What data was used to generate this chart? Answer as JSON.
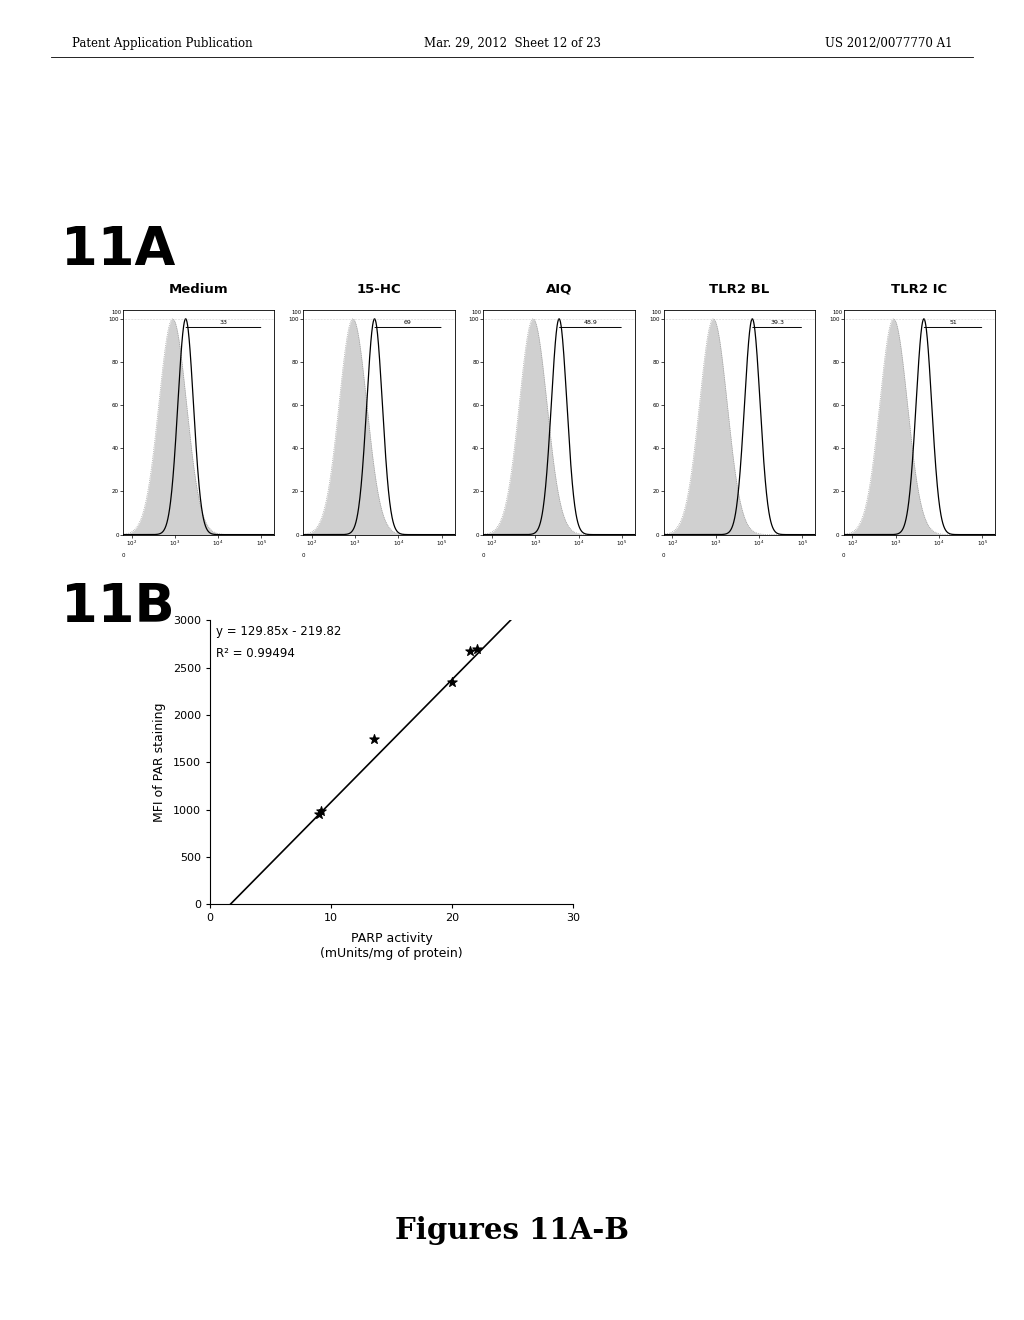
{
  "header_left": "Patent Application Publication",
  "header_mid": "Mar. 29, 2012  Sheet 12 of 23",
  "header_right": "US 2012/0077770 A1",
  "label_11A": "11A",
  "label_11B": "11B",
  "panel_titles": [
    "Medium",
    "15-HC",
    "AIQ",
    "TLR2 BL",
    "TLR2 IC"
  ],
  "panel_annotations": [
    "33",
    "69",
    "48.9",
    "39.3",
    "51"
  ],
  "ctrl_peaks": [
    2.95,
    2.95,
    2.95,
    2.95,
    2.95
  ],
  "ctrl_sigmas": [
    0.32,
    0.32,
    0.32,
    0.32,
    0.32
  ],
  "stain_peaks": [
    3.25,
    3.45,
    3.55,
    3.85,
    3.65
  ],
  "stain_sigmas": [
    0.18,
    0.18,
    0.18,
    0.18,
    0.18
  ],
  "scatter_x": [
    9.0,
    9.2,
    13.5,
    20.0,
    21.5,
    22.0
  ],
  "scatter_y": [
    950,
    980,
    1750,
    2350,
    2680,
    2700
  ],
  "equation": "y = 129.85x - 219.82",
  "r_squared": "R² = 0.99494",
  "xlabel_line1": "PARP activity",
  "xlabel_line2": "(mUnits/mg of protein)",
  "ylabel_11B": "MFI of PAR staining",
  "xlim_11B": [
    0,
    30
  ],
  "ylim_11B": [
    0,
    3000
  ],
  "xticks_11B": [
    0,
    10,
    20,
    30
  ],
  "yticks_11B": [
    0,
    500,
    1000,
    1500,
    2000,
    2500,
    3000
  ],
  "fig_caption": "Figures 11A-B",
  "background_color": "#ffffff"
}
